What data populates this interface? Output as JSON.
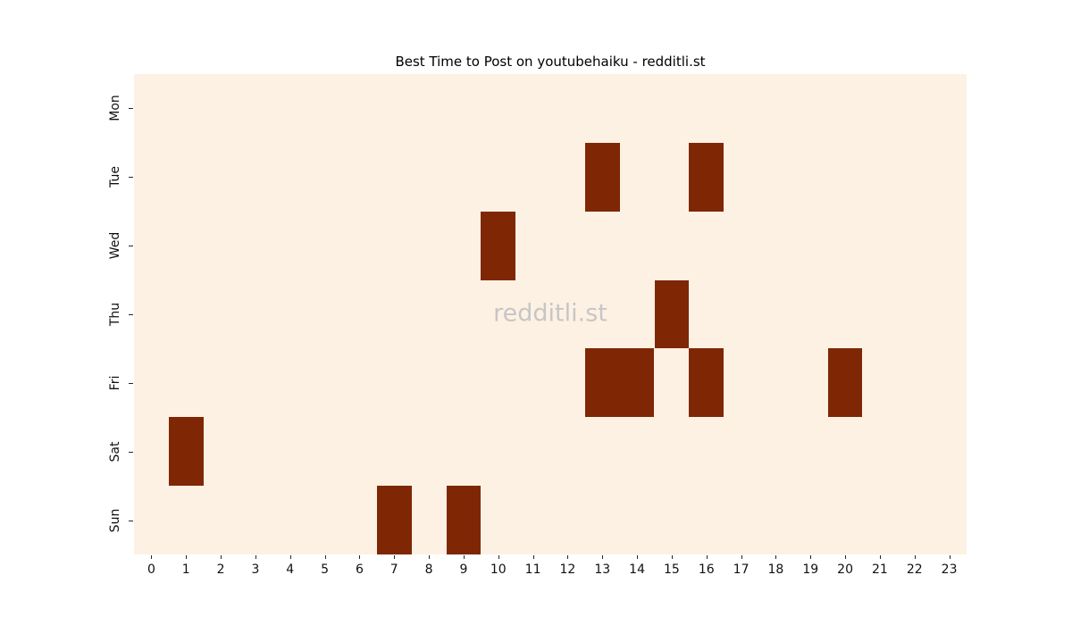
{
  "title": "Best Time to Post on youtubehaiku - redditli.st",
  "watermark": "redditli.st",
  "chart_data": {
    "type": "heatmap",
    "title": "Best Time to Post on youtubehaiku - redditli.st",
    "xlabel": "",
    "ylabel": "",
    "x_categories": [
      "0",
      "1",
      "2",
      "3",
      "4",
      "5",
      "6",
      "7",
      "8",
      "9",
      "10",
      "11",
      "12",
      "13",
      "14",
      "15",
      "16",
      "17",
      "18",
      "19",
      "20",
      "21",
      "22",
      "23"
    ],
    "y_categories": [
      "Mon",
      "Tue",
      "Wed",
      "Thu",
      "Fri",
      "Sat",
      "Sun"
    ],
    "matrix": [
      [
        0,
        0,
        0,
        0,
        0,
        0,
        0,
        0,
        0,
        0,
        0,
        0,
        0,
        0,
        0,
        0,
        0,
        0,
        0,
        0,
        0,
        0,
        0,
        0
      ],
      [
        0,
        0,
        0,
        0,
        0,
        0,
        0,
        0,
        0,
        0,
        0,
        0,
        0,
        1,
        0,
        0,
        1,
        0,
        0,
        0,
        0,
        0,
        0,
        0
      ],
      [
        0,
        0,
        0,
        0,
        0,
        0,
        0,
        0,
        0,
        0,
        1,
        0,
        0,
        0,
        0,
        0,
        0,
        0,
        0,
        0,
        0,
        0,
        0,
        0
      ],
      [
        0,
        0,
        0,
        0,
        0,
        0,
        0,
        0,
        0,
        0,
        0,
        0,
        0,
        0,
        0,
        1,
        0,
        0,
        0,
        0,
        0,
        0,
        0,
        0
      ],
      [
        0,
        0,
        0,
        0,
        0,
        0,
        0,
        0,
        0,
        0,
        0,
        0,
        0,
        1,
        1,
        0,
        1,
        0,
        0,
        0,
        1,
        0,
        0,
        0
      ],
      [
        0,
        1,
        0,
        0,
        0,
        0,
        0,
        0,
        0,
        0,
        0,
        0,
        0,
        0,
        0,
        0,
        0,
        0,
        0,
        0,
        0,
        0,
        0,
        0
      ],
      [
        0,
        0,
        0,
        0,
        0,
        0,
        0,
        1,
        0,
        1,
        0,
        0,
        0,
        0,
        0,
        0,
        0,
        0,
        0,
        0,
        0,
        0,
        0,
        0
      ]
    ],
    "highlighted_cells": [
      {
        "day": "Tue",
        "hour": 13
      },
      {
        "day": "Tue",
        "hour": 16
      },
      {
        "day": "Wed",
        "hour": 10
      },
      {
        "day": "Thu",
        "hour": 15
      },
      {
        "day": "Fri",
        "hour": 13
      },
      {
        "day": "Fri",
        "hour": 14
      },
      {
        "day": "Fri",
        "hour": 16
      },
      {
        "day": "Fri",
        "hour": 20
      },
      {
        "day": "Sat",
        "hour": 1
      },
      {
        "day": "Sun",
        "hour": 7
      },
      {
        "day": "Sun",
        "hour": 9
      }
    ],
    "colors": {
      "on": "#7f2704",
      "off": "#fdf1e4",
      "watermark": "#c6c6c6",
      "tick_text": "#111111"
    },
    "legend": "none",
    "grid": false,
    "x_range": [
      0,
      23
    ],
    "value_range": [
      0,
      1
    ]
  }
}
